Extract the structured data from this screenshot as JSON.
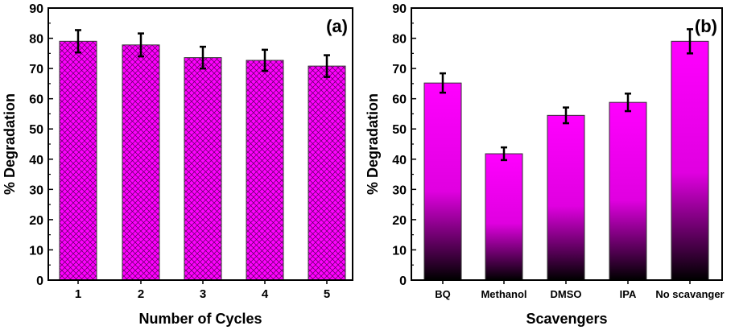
{
  "chart_data": [
    {
      "type": "bar",
      "panel_label": "(a)",
      "xlabel": "Number of Cycles",
      "ylabel": "% Degradation",
      "ylim": [
        0,
        90
      ],
      "yticks": [
        0,
        10,
        20,
        30,
        40,
        50,
        60,
        70,
        80,
        90
      ],
      "categories": [
        "1",
        "2",
        "3",
        "4",
        "5"
      ],
      "values": [
        79,
        77.8,
        73.6,
        72.7,
        70.8
      ],
      "errors": [
        3.7,
        3.8,
        3.6,
        3.5,
        3.6
      ],
      "fill": "crosshatch",
      "color": "#ff00ff"
    },
    {
      "type": "bar",
      "panel_label": "(b)",
      "xlabel": "Scavengers",
      "ylabel": "% Degradation",
      "ylim": [
        0,
        90
      ],
      "yticks": [
        0,
        10,
        20,
        30,
        40,
        50,
        60,
        70,
        80,
        90
      ],
      "categories": [
        "BQ",
        "Methanol",
        "DMSO",
        "IPA",
        "No scavanger"
      ],
      "values": [
        65.2,
        41.8,
        54.5,
        58.8,
        79
      ],
      "errors": [
        3.2,
        2.1,
        2.6,
        2.9,
        4.0
      ],
      "fill": "gradient",
      "color": "#ff00ff"
    }
  ]
}
